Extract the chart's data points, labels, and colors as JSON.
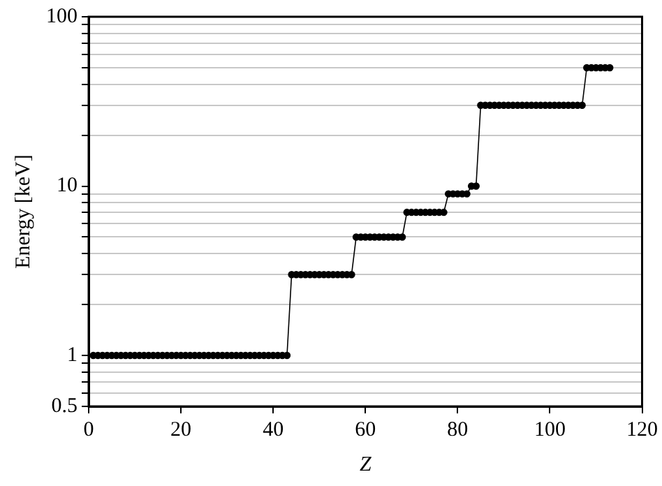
{
  "chart_data": {
    "type": "line",
    "xlabel": "Z",
    "ylabel": "Energy [keV]",
    "x": [
      1,
      2,
      3,
      4,
      5,
      6,
      7,
      8,
      9,
      10,
      11,
      12,
      13,
      14,
      15,
      16,
      17,
      18,
      19,
      20,
      21,
      22,
      23,
      24,
      25,
      26,
      27,
      28,
      29,
      30,
      31,
      32,
      33,
      34,
      35,
      36,
      37,
      38,
      39,
      40,
      41,
      42,
      43,
      44,
      45,
      46,
      47,
      48,
      49,
      50,
      51,
      52,
      53,
      54,
      55,
      56,
      57,
      58,
      59,
      60,
      61,
      62,
      63,
      64,
      65,
      66,
      67,
      68,
      69,
      70,
      71,
      72,
      73,
      74,
      75,
      76,
      77,
      78,
      79,
      80,
      81,
      82,
      83,
      84,
      85,
      86,
      87,
      88,
      89,
      90,
      91,
      92,
      93,
      94,
      95,
      96,
      97,
      98,
      99,
      100,
      101,
      102,
      103,
      104,
      105,
      106,
      107,
      108,
      109,
      110,
      111,
      112,
      113
    ],
    "series": [
      {
        "color": "#000000",
        "values": [
          1,
          1,
          1,
          1,
          1,
          1,
          1,
          1,
          1,
          1,
          1,
          1,
          1,
          1,
          1,
          1,
          1,
          1,
          1,
          1,
          1,
          1,
          1,
          1,
          1,
          1,
          1,
          1,
          1,
          1,
          1,
          1,
          1,
          1,
          1,
          1,
          1,
          1,
          1,
          1,
          1,
          1,
          1,
          3,
          3,
          3,
          3,
          3,
          3,
          3,
          3,
          3,
          3,
          3,
          3,
          3,
          3,
          5,
          5,
          5,
          5,
          5,
          5,
          5,
          5,
          5,
          5,
          5,
          7,
          7,
          7,
          7,
          7,
          7,
          7,
          7,
          7,
          9,
          9,
          9,
          9,
          9,
          10,
          10,
          30,
          30,
          30,
          30,
          30,
          30,
          30,
          30,
          30,
          30,
          30,
          30,
          30,
          30,
          30,
          30,
          30,
          30,
          30,
          30,
          30,
          30,
          30,
          50,
          50,
          50,
          50,
          50,
          50
        ]
      }
    ],
    "xlim": [
      0,
      120
    ],
    "xticks": [
      0,
      20,
      40,
      60,
      80,
      100,
      120
    ],
    "ylim": [
      0.5,
      100
    ],
    "yticks": [
      0.5,
      {
        "value": 0.6,
        "label": null
      },
      {
        "value": 0.7,
        "label": null
      },
      {
        "value": 0.8,
        "label": null
      },
      {
        "value": 0.9,
        "label": null
      },
      1,
      {
        "value": 2,
        "label": null
      },
      {
        "value": 3,
        "label": null
      },
      {
        "value": 4,
        "label": null
      },
      {
        "value": 5,
        "label": null
      },
      {
        "value": 6,
        "label": null
      },
      {
        "value": 7,
        "label": null
      },
      {
        "value": 8,
        "label": null
      },
      {
        "value": 9,
        "label": null
      },
      10,
      {
        "value": 20,
        "label": null
      },
      {
        "value": 30,
        "label": null
      },
      {
        "value": 40,
        "label": null
      },
      {
        "value": 50,
        "label": null
      },
      {
        "value": 60,
        "label": null
      },
      {
        "value": 70,
        "label": null
      },
      {
        "value": 80,
        "label": null
      },
      {
        "value": 90,
        "label": null
      },
      100
    ],
    "log": true,
    "grid": "y",
    "marker": "circle",
    "line_style": "solid",
    "legend": false
  }
}
